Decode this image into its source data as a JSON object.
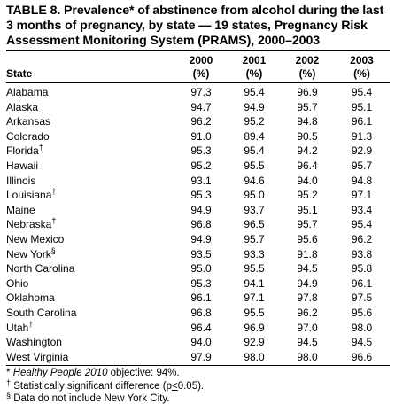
{
  "title": "TABLE 8. Prevalence* of abstinence from alcohol during the last 3 months of pregnancy, by state — 19 states, Pregnancy Risk Assessment Monitoring System (PRAMS), 2000–2003",
  "columns": {
    "state": "State",
    "years": [
      {
        "year": "2000",
        "unit": "(%)"
      },
      {
        "year": "2001",
        "unit": "(%)"
      },
      {
        "year": "2002",
        "unit": "(%)"
      },
      {
        "year": "2003",
        "unit": "(%)"
      }
    ]
  },
  "rows": [
    {
      "state": "Alabama",
      "mark": "",
      "values": [
        "97.3",
        "95.4",
        "96.9",
        "95.4"
      ]
    },
    {
      "state": "Alaska",
      "mark": "",
      "values": [
        "94.7",
        "94.9",
        "95.7",
        "95.1"
      ]
    },
    {
      "state": "Arkansas",
      "mark": "",
      "values": [
        "96.2",
        "95.2",
        "94.8",
        "96.1"
      ]
    },
    {
      "state": "Colorado",
      "mark": "",
      "values": [
        "91.0",
        "89.4",
        "90.5",
        "91.3"
      ]
    },
    {
      "state": "Florida",
      "mark": "†",
      "values": [
        "95.3",
        "95.4",
        "94.2",
        "92.9"
      ]
    },
    {
      "state": "Hawaii",
      "mark": "",
      "values": [
        "95.2",
        "95.5",
        "96.4",
        "95.7"
      ]
    },
    {
      "state": "Illinois",
      "mark": "",
      "values": [
        "93.1",
        "94.6",
        "94.0",
        "94.8"
      ]
    },
    {
      "state": "Louisiana",
      "mark": "†",
      "values": [
        "95.3",
        "95.0",
        "95.2",
        "97.1"
      ]
    },
    {
      "state": "Maine",
      "mark": "",
      "values": [
        "94.9",
        "93.7",
        "95.1",
        "93.4"
      ]
    },
    {
      "state": "Nebraska",
      "mark": "†",
      "values": [
        "96.8",
        "96.5",
        "95.7",
        "95.4"
      ]
    },
    {
      "state": "New Mexico",
      "mark": "",
      "values": [
        "94.9",
        "95.7",
        "95.6",
        "96.2"
      ]
    },
    {
      "state": "New York",
      "mark": "§",
      "values": [
        "93.5",
        "93.3",
        "91.8",
        "93.8"
      ]
    },
    {
      "state": "North Carolina",
      "mark": "",
      "values": [
        "95.0",
        "95.5",
        "94.5",
        "95.8"
      ]
    },
    {
      "state": "Ohio",
      "mark": "",
      "values": [
        "95.3",
        "94.1",
        "94.9",
        "96.1"
      ]
    },
    {
      "state": "Oklahoma",
      "mark": "",
      "values": [
        "96.1",
        "97.1",
        "97.8",
        "97.5"
      ]
    },
    {
      "state": "South Carolina",
      "mark": "",
      "values": [
        "96.8",
        "95.5",
        "96.2",
        "95.6"
      ]
    },
    {
      "state": "Utah",
      "mark": "†",
      "values": [
        "96.4",
        "96.9",
        "97.0",
        "98.0"
      ]
    },
    {
      "state": "Washington",
      "mark": "",
      "values": [
        "94.0",
        "92.9",
        "94.5",
        "94.5"
      ]
    },
    {
      "state": "West Virginia",
      "mark": "",
      "values": [
        "97.9",
        "98.0",
        "98.0",
        "96.6"
      ]
    }
  ],
  "footnotes": [
    {
      "mark": "*",
      "italic": "Healthy People 2010",
      "text": " objective: 94%."
    },
    {
      "mark": "†",
      "text_before": " Statistically significant difference (p",
      "underlined": "<",
      "text_after": "0.05)."
    },
    {
      "mark": "§",
      "text": " Data do not include New York City."
    }
  ]
}
